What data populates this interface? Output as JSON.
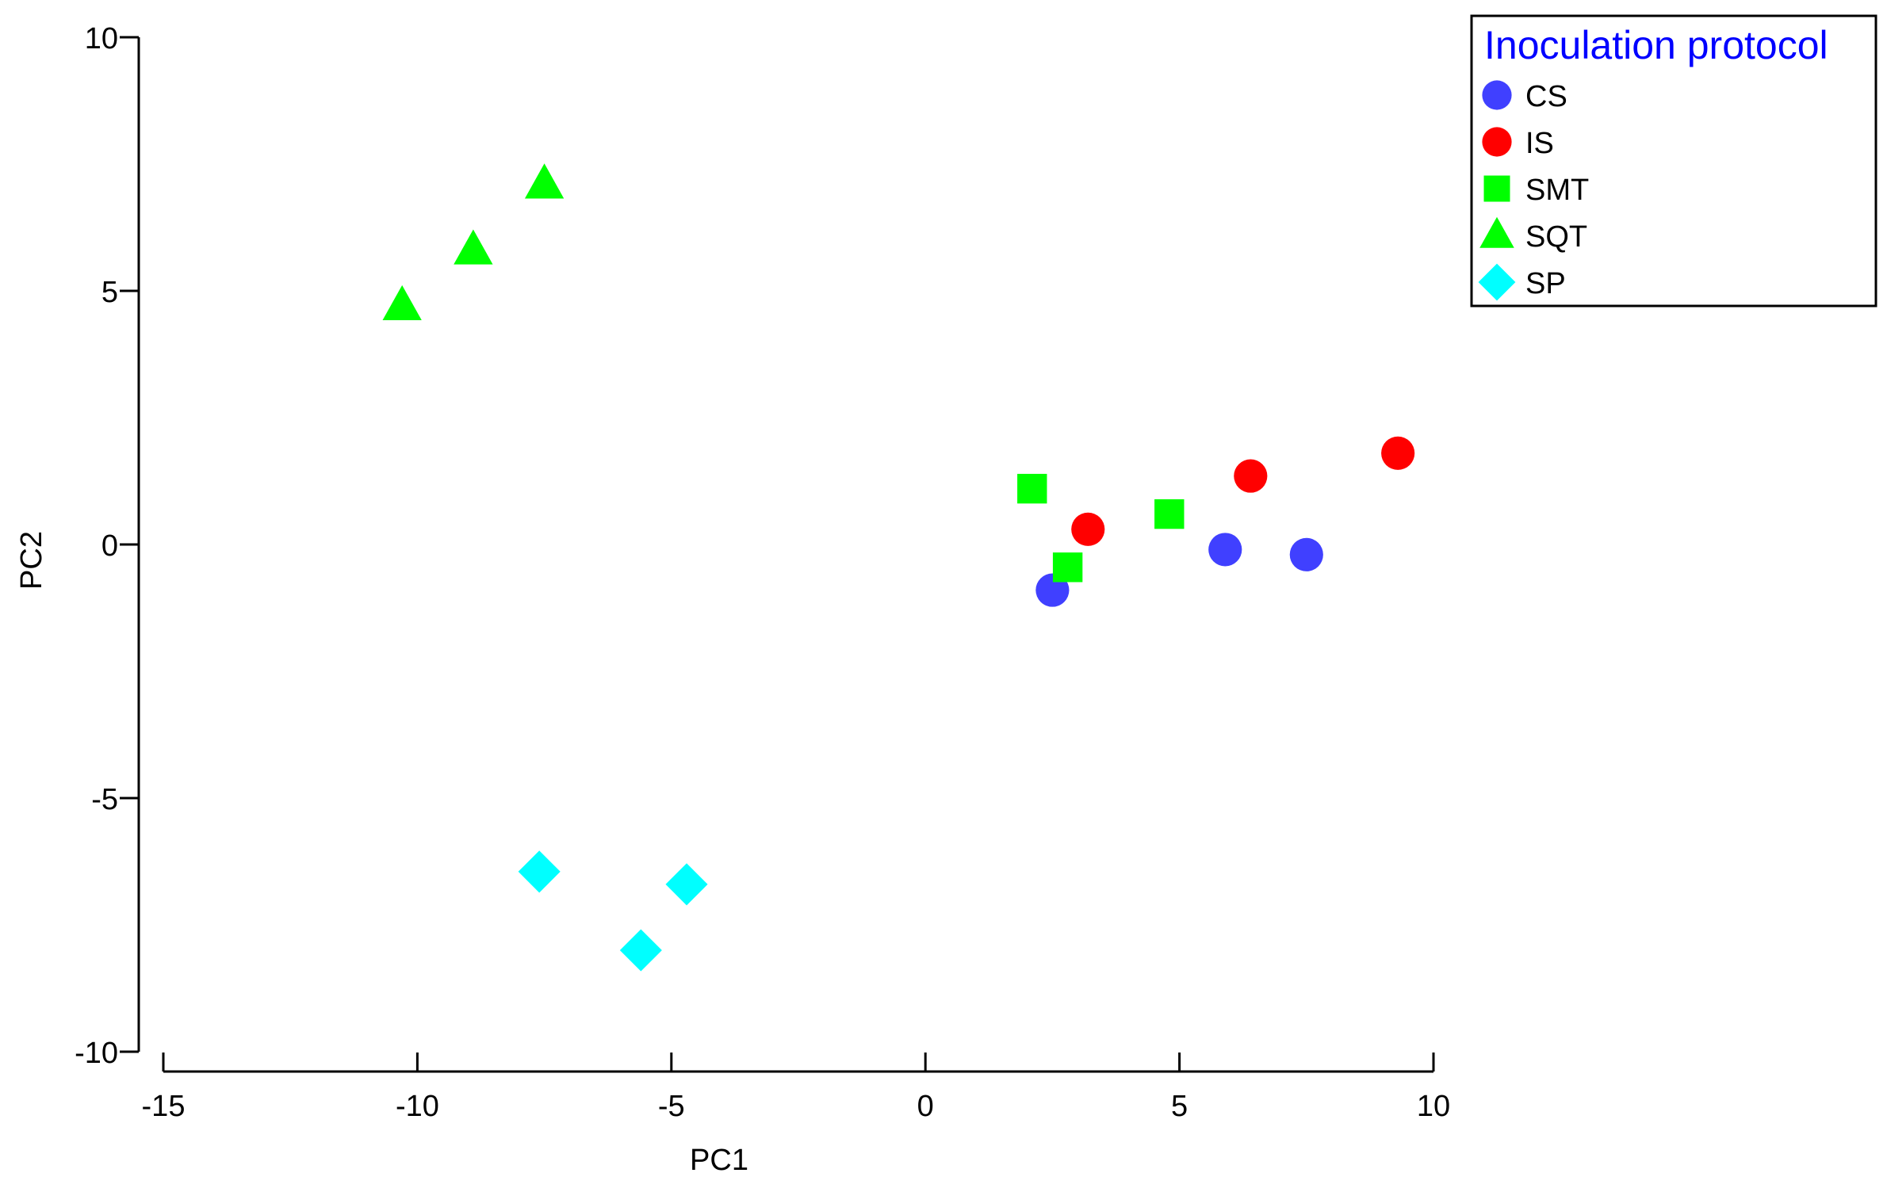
{
  "chart_data": {
    "type": "scatter",
    "title": "",
    "xlabel": "PC1",
    "ylabel": "PC2",
    "xlim": [
      -15,
      10
    ],
    "ylim": [
      -10,
      10
    ],
    "xticks": [
      -15,
      -10,
      -5,
      0,
      5,
      10
    ],
    "yticks": [
      -10,
      -5,
      0,
      5,
      10
    ],
    "xtick_labels": [
      "-15",
      "-10",
      "-5",
      "0",
      "5",
      "10"
    ],
    "ytick_labels": [
      "-10",
      "-5",
      "0",
      "5",
      "10"
    ],
    "grid": false,
    "legend": {
      "title": "Inoculation protocol",
      "title_color": "#0000ff",
      "placement": "top-right"
    },
    "series": [
      {
        "name": "CS",
        "marker": "circle",
        "color": "#4040ff",
        "points": [
          [
            2.5,
            -0.9
          ],
          [
            5.9,
            -0.1
          ],
          [
            7.5,
            -0.2
          ]
        ]
      },
      {
        "name": "IS",
        "marker": "circle",
        "color": "#ff0000",
        "points": [
          [
            3.2,
            0.3
          ],
          [
            6.4,
            1.35
          ],
          [
            9.3,
            1.8
          ]
        ]
      },
      {
        "name": "SMT",
        "marker": "square",
        "color": "#00ff00",
        "points": [
          [
            2.1,
            1.1
          ],
          [
            2.8,
            -0.45
          ],
          [
            4.8,
            0.6
          ]
        ]
      },
      {
        "name": "SQT",
        "marker": "triangle",
        "color": "#00ff00",
        "points": [
          [
            -10.3,
            4.7
          ],
          [
            -8.9,
            5.8
          ],
          [
            -7.5,
            7.1
          ]
        ]
      },
      {
        "name": "SP",
        "marker": "diamond",
        "color": "#00ffff",
        "points": [
          [
            -7.6,
            -6.45
          ],
          [
            -5.6,
            -8.0
          ],
          [
            -4.7,
            -6.7
          ]
        ]
      }
    ]
  }
}
